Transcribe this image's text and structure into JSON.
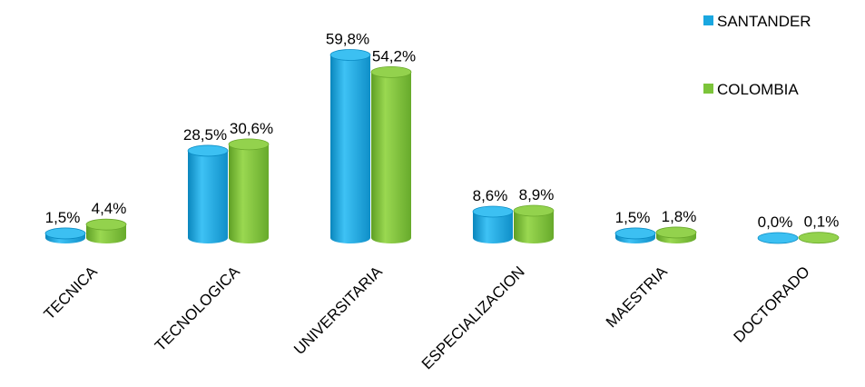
{
  "chart_data": {
    "type": "bar",
    "categories": [
      "TECNICA",
      "TECNOLOGICA",
      "UNIVERSITARIA",
      "ESPECIALIZACION",
      "MAESTRIA",
      "DOCTORADO"
    ],
    "series": [
      {
        "name": "SANTANDER",
        "color": "#1aa7e0",
        "values": [
          1.5,
          28.5,
          59.8,
          8.6,
          1.5,
          0.0
        ],
        "labels": [
          "1,5%",
          "28,5%",
          "59,8%",
          "8,6%",
          "1,5%",
          "0,0%"
        ]
      },
      {
        "name": "COLOMBIA",
        "color": "#7cc43a",
        "values": [
          4.4,
          30.6,
          54.2,
          8.9,
          1.8,
          0.1
        ],
        "labels": [
          "4,4%",
          "30,6%",
          "54,2%",
          "8,9%",
          "1,8%",
          "0,1%"
        ]
      }
    ],
    "unit": "%",
    "ylim": [
      0,
      60
    ],
    "grid": false,
    "axes_visible": false,
    "legend_position": "top-right",
    "bar_style": "3d-cylinder"
  }
}
